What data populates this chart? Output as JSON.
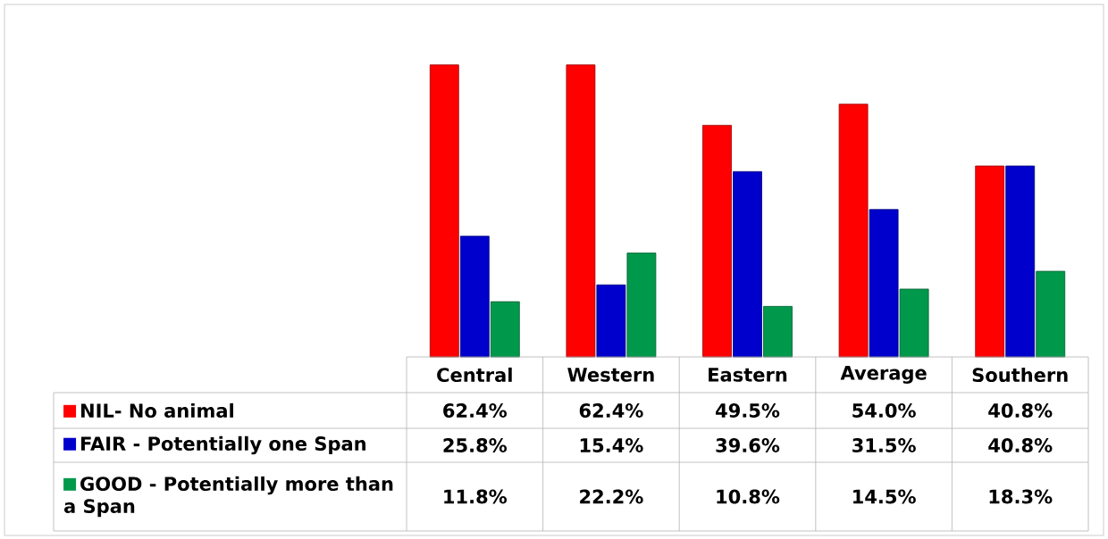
{
  "chart_data": {
    "type": "bar",
    "categories": [
      "Central",
      "Western",
      "Eastern",
      "Average",
      "Southern"
    ],
    "series": [
      {
        "name": "NIL- No animal",
        "color": "#ff0000",
        "values": [
          62.4,
          62.4,
          49.5,
          54.0,
          40.8
        ],
        "value_labels": [
          "62.4%",
          "62.4%",
          "49.5%",
          "54.0%",
          "40.8%"
        ]
      },
      {
        "name": "FAIR - Potentially one Span",
        "color": "#0000cc",
        "values": [
          25.8,
          15.4,
          39.6,
          31.5,
          40.8
        ],
        "value_labels": [
          "25.8%",
          "15.4%",
          "39.6%",
          "31.5%",
          "40.8%"
        ]
      },
      {
        "name": "GOOD - Potentially more than a Span",
        "color": "#00994c",
        "values": [
          11.8,
          22.2,
          10.8,
          14.5,
          18.3
        ],
        "value_labels": [
          "11.8%",
          "22.2%",
          "10.8%",
          "14.5%",
          "18.3%"
        ]
      }
    ],
    "legend": "bottom left"
  }
}
